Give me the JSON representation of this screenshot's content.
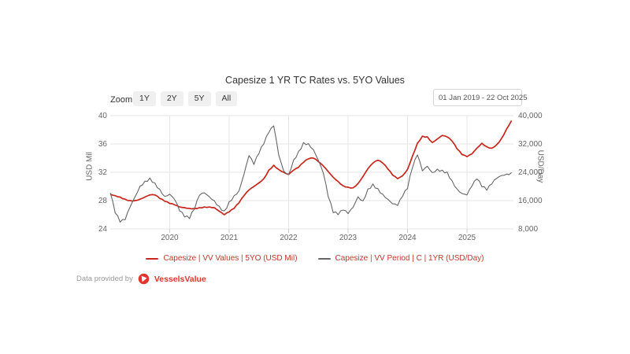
{
  "toolbar": {
    "zoom_label": "Zoom",
    "buttons": [
      "1Y",
      "2Y",
      "5Y",
      "All"
    ],
    "date_range": "01 Jan 2019 - 22 Oct 2025",
    "calendar_icon_color": "#c0392b"
  },
  "footer": {
    "text": "Data provided by",
    "brand": "VesselsValue",
    "brand_color": "#e0342c"
  },
  "colors": {
    "grid": "#e6e6e6",
    "tick": "#cccccc",
    "axis_text": "#666666",
    "legend_text": "#c0392b"
  },
  "chart_data": {
    "type": "line",
    "title": "Capesize 1 YR TC Rates vs. 5YO Values",
    "interval": "monthly",
    "start": "2019-01",
    "end": "2025-10",
    "x_ticks": [
      2020,
      2021,
      2022,
      2023,
      2024,
      2025
    ],
    "y_left": {
      "title": "USD Mil",
      "min": 24,
      "max": 40,
      "ticks": [
        40,
        36,
        32,
        28,
        24
      ]
    },
    "y_right": {
      "title": "USD/Day",
      "min": 8000,
      "max": 40000,
      "ticks": [
        40000,
        32000,
        24000,
        16000,
        8000
      ],
      "tick_labels": [
        "40,000",
        "32,000",
        "24,000",
        "16,000",
        "8,000"
      ]
    },
    "legend_position": "bottom",
    "grid": true,
    "series": [
      {
        "name": "Capesize | VV Values | 5YO (USD Mil)",
        "axis": "left",
        "color": "#c8271c",
        "values": [
          28.9,
          28.7,
          28.5,
          28.2,
          28.0,
          28.0,
          28.2,
          28.5,
          28.8,
          28.8,
          28.3,
          27.9,
          27.6,
          27.4,
          27.1,
          27.0,
          26.9,
          26.9,
          27.0,
          27.1,
          27.1,
          27.0,
          26.5,
          26.0,
          26.4,
          26.9,
          27.7,
          28.7,
          29.5,
          30.0,
          30.5,
          31.1,
          32.3,
          33.0,
          32.4,
          32.0,
          31.7,
          32.3,
          32.7,
          33.4,
          33.9,
          34.0,
          33.5,
          32.9,
          32.1,
          31.3,
          30.7,
          30.1,
          29.9,
          29.8,
          30.4,
          31.4,
          32.5,
          33.3,
          33.7,
          33.3,
          32.5,
          31.6,
          31.1,
          31.5,
          32.4,
          34.3,
          36.1,
          37.1,
          37.0,
          36.2,
          36.7,
          37.2,
          37.0,
          36.4,
          35.3,
          34.5,
          34.2,
          34.6,
          35.4,
          36.1,
          35.6,
          35.4,
          35.9,
          36.8,
          38.1,
          39.3
        ]
      },
      {
        "name": "Capesize | VV Period | C | 1YR (USD/Day)",
        "axis": "right",
        "color": "#666666",
        "values": [
          18200,
          12500,
          9900,
          10600,
          14200,
          17100,
          20100,
          21500,
          22400,
          21000,
          19200,
          17200,
          17800,
          16300,
          13100,
          11400,
          10900,
          13600,
          17500,
          18200,
          17100,
          16000,
          14400,
          13100,
          15700,
          17400,
          18800,
          23500,
          28700,
          26200,
          29300,
          32000,
          35200,
          37100,
          28900,
          24400,
          23400,
          27500,
          29900,
          32400,
          32100,
          30400,
          27400,
          23800,
          17100,
          12600,
          12000,
          13300,
          12300,
          14100,
          17100,
          15900,
          19300,
          20700,
          19400,
          17800,
          16400,
          15100,
          14600,
          17200,
          19400,
          25300,
          28900,
          24400,
          25700,
          23900,
          24900,
          24600,
          24100,
          21600,
          19300,
          18000,
          17600,
          20100,
          22100,
          19900,
          18900,
          20700,
          22300,
          23100,
          23500,
          23900
        ]
      }
    ]
  }
}
